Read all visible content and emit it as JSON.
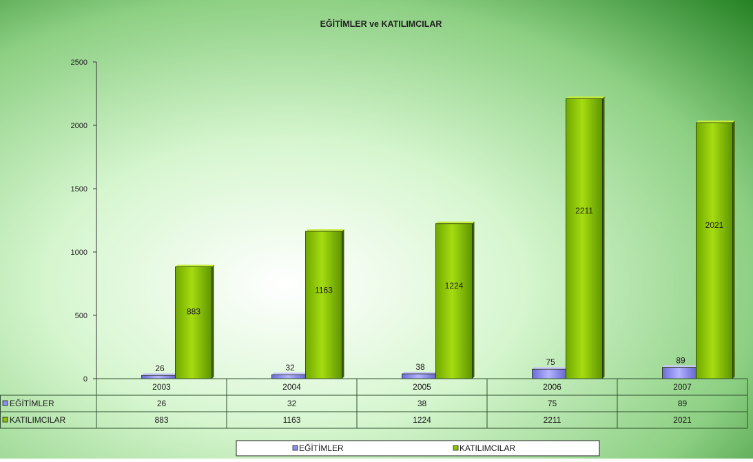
{
  "chart_data": {
    "type": "bar",
    "title": "EĞİTİMLER ve KATILIMCILAR",
    "categories": [
      "2003",
      "2004",
      "2005",
      "2006",
      "2007"
    ],
    "series": [
      {
        "name": "EĞİTİMLER",
        "values": [
          26,
          32,
          38,
          75,
          89
        ],
        "color": "#8c8cf2"
      },
      {
        "name": "KATILIMCILAR",
        "values": [
          883,
          1163,
          1224,
          2211,
          2021
        ],
        "color": "#8cc400"
      }
    ],
    "ylim": [
      0,
      2500
    ],
    "yticks": [
      0,
      500,
      1000,
      1500,
      2000,
      2500
    ],
    "grid": false,
    "data_table": true,
    "legend_position": "bottom",
    "background": "green-gradient"
  },
  "colors": {
    "bg_light": "#e6fbe0",
    "bg_dark": "#1f7e1f",
    "table_border": "#2f4f2f",
    "label_text": "#1a1a1a"
  }
}
